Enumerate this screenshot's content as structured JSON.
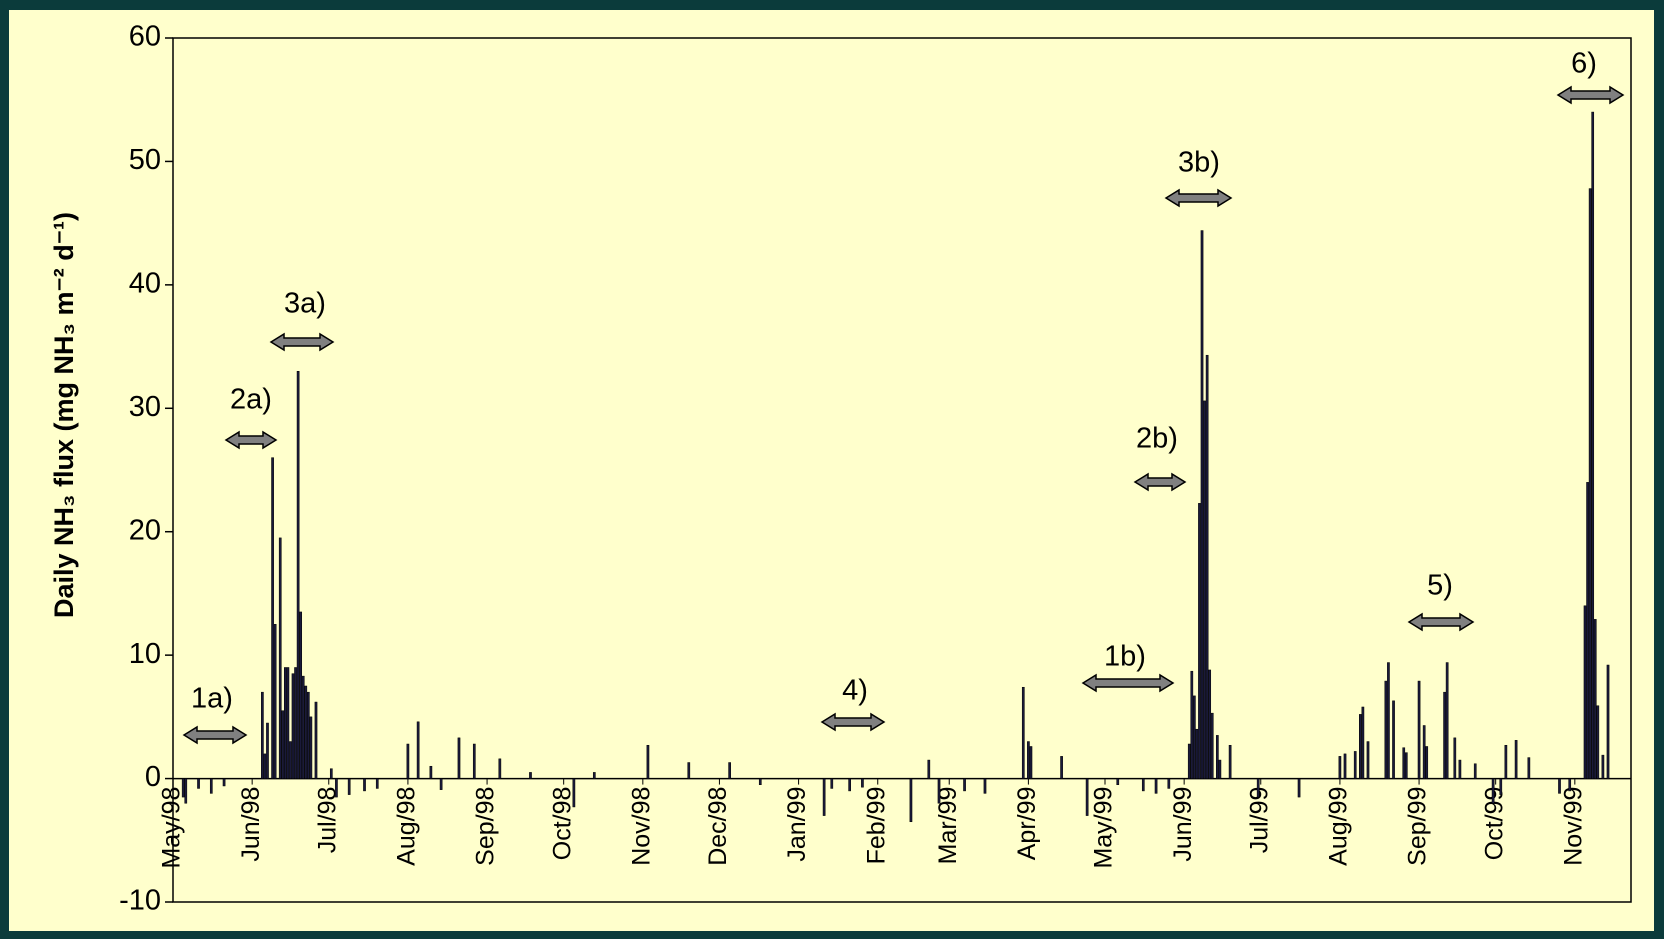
{
  "chart_data": {
    "type": "bar",
    "y_label": "Daily NH₃ flux (mg NH₃ m⁻² d⁻¹)",
    "color": "#1a1a3a",
    "xlim": [
      0,
      571
    ],
    "xticks": [
      {
        "value": 0,
        "label": "May/98"
      },
      {
        "value": 31,
        "label": "Jun/98"
      },
      {
        "value": 61,
        "label": "Jul/98"
      },
      {
        "value": 92,
        "label": "Aug/98"
      },
      {
        "value": 123,
        "label": "Sep/98"
      },
      {
        "value": 153,
        "label": "Oct/98"
      },
      {
        "value": 184,
        "label": "Nov/98"
      },
      {
        "value": 214,
        "label": "Dec/98"
      },
      {
        "value": 245,
        "label": "Jan/99"
      },
      {
        "value": 276,
        "label": "Feb/99"
      },
      {
        "value": 304,
        "label": "Mar/99"
      },
      {
        "value": 335,
        "label": "Apr/99"
      },
      {
        "value": 365,
        "label": "May/99"
      },
      {
        "value": 396,
        "label": "Jun/99"
      },
      {
        "value": 426,
        "label": "Jul/99"
      },
      {
        "value": 457,
        "label": "Aug/99"
      },
      {
        "value": 488,
        "label": "Sep/99"
      },
      {
        "value": 518,
        "label": "Oct/99"
      },
      {
        "value": 549,
        "label": "Nov/99"
      }
    ],
    "ylim": [
      -10,
      60
    ],
    "yticks": [
      -10,
      0,
      10,
      20,
      30,
      40,
      50,
      60
    ],
    "x": [
      4,
      5,
      10,
      15,
      20,
      35,
      36,
      37,
      39,
      40,
      42,
      43,
      44,
      45,
      46,
      47,
      48,
      49,
      50,
      51,
      52,
      53,
      54,
      56,
      62,
      64,
      69,
      75,
      80,
      92,
      96,
      101,
      105,
      112,
      118,
      128,
      140,
      157,
      165,
      186,
      202,
      218,
      230,
      255,
      258,
      265,
      270,
      289,
      296,
      300,
      310,
      318,
      333,
      335,
      336,
      348,
      358,
      370,
      380,
      385,
      390,
      398,
      399,
      400,
      401,
      402,
      403,
      404,
      405,
      406,
      407,
      409,
      410,
      414,
      425,
      441,
      457,
      459,
      463,
      465,
      466,
      468,
      475,
      476,
      478,
      482,
      483,
      488,
      490,
      491,
      498,
      499,
      502,
      504,
      510,
      517,
      520,
      522,
      526,
      531,
      543,
      547,
      553,
      554,
      555,
      556,
      557,
      558,
      560,
      562
    ],
    "values": [
      -1.5,
      -2,
      -0.8,
      -1.2,
      -0.6,
      7,
      2,
      4.5,
      26,
      12.5,
      19.5,
      5.5,
      9,
      9,
      3,
      8.5,
      9,
      33,
      13.5,
      8.3,
      7.5,
      7,
      5,
      6.2,
      0.8,
      -1.5,
      -1.3,
      -1,
      -0.8,
      2.8,
      4.6,
      1,
      -0.9,
      3.3,
      2.8,
      1.6,
      0.5,
      -2.3,
      0.5,
      2.7,
      1.3,
      1.3,
      -0.5,
      -3,
      -0.8,
      -1,
      -0.7,
      -3.5,
      1.5,
      -2,
      -1,
      -1.2,
      7.4,
      3,
      2.6,
      1.8,
      -3,
      -0.5,
      -1,
      -1.2,
      -0.8,
      2.8,
      8.7,
      6.7,
      4,
      22.3,
      44.4,
      30.6,
      34.3,
      8.8,
      5.3,
      3.5,
      1.5,
      2.7,
      -1.5,
      -1.5,
      1.8,
      2,
      2.2,
      5.2,
      5.8,
      3,
      7.9,
      9.4,
      6.3,
      2.5,
      2.1,
      7.9,
      4.3,
      2.6,
      7,
      9.4,
      3.3,
      1.5,
      1.2,
      -2,
      -1.3,
      2.7,
      3.1,
      1.7,
      -1.2,
      -1,
      14,
      24,
      47.8,
      54,
      12.9,
      5.9,
      1.9,
      9.2
    ],
    "annotations": [
      "1a)",
      "2a)",
      "3a)",
      "4)",
      "1b)",
      "2b)",
      "3b)",
      "5)",
      "6)"
    ]
  }
}
